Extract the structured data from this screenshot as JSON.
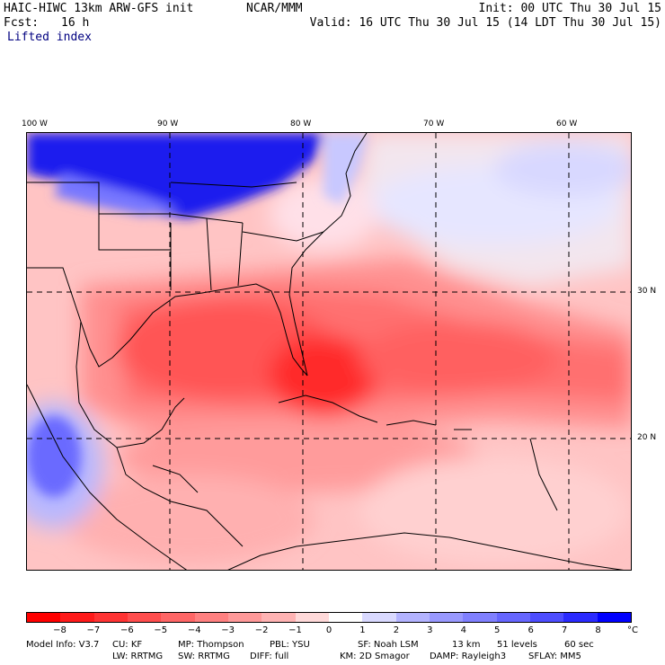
{
  "header": {
    "model_title": "HAIC-HIWC 13km ARW-GFS init",
    "org": "NCAR/MMM",
    "init": "Init: 00 UTC Thu 30 Jul 15",
    "fcst_label": "Fcst:",
    "fcst_value": "16 h",
    "valid": "Valid: 16 UTC Thu 30 Jul 15 (14 LDT Thu 30 Jul 15)",
    "field": "Lifted index"
  },
  "map": {
    "lon_labels": [
      "100 W",
      "90 W",
      "80 W",
      "70 W",
      "60 W"
    ],
    "lat_labels": [
      "30 N",
      "20 N"
    ]
  },
  "colorbar": {
    "ticks": [
      "−8",
      "−7",
      "−6",
      "−5",
      "−4",
      "−3",
      "−2",
      "−1",
      "0",
      "1",
      "2",
      "3",
      "4",
      "5",
      "6",
      "7",
      "8"
    ],
    "unit": "°C",
    "colors": [
      "#ff0000",
      "#ff1a1a",
      "#ff3333",
      "#ff4d4d",
      "#ff6666",
      "#ff8080",
      "#ff9999",
      "#ffb3b3",
      "#ffd9d9",
      "#ffffff",
      "#d9d9ff",
      "#b3b3ff",
      "#9999ff",
      "#8080ff",
      "#6666ff",
      "#4d4dff",
      "#2a2aff",
      "#0000ff"
    ]
  },
  "footer": {
    "line1": [
      "Model Info: V3.7",
      "CU: KF",
      "MP: Thompson",
      "PBL: YSU",
      "SF: Noah LSM",
      "13 km",
      "51 levels",
      "60 sec"
    ],
    "line2": [
      "LW: RRTMG",
      "SW: RRTMG",
      "DIFF: full",
      "KM: 2D Smagor",
      "DAMP: Rayleigh3",
      "SFLAY: MM5"
    ]
  }
}
